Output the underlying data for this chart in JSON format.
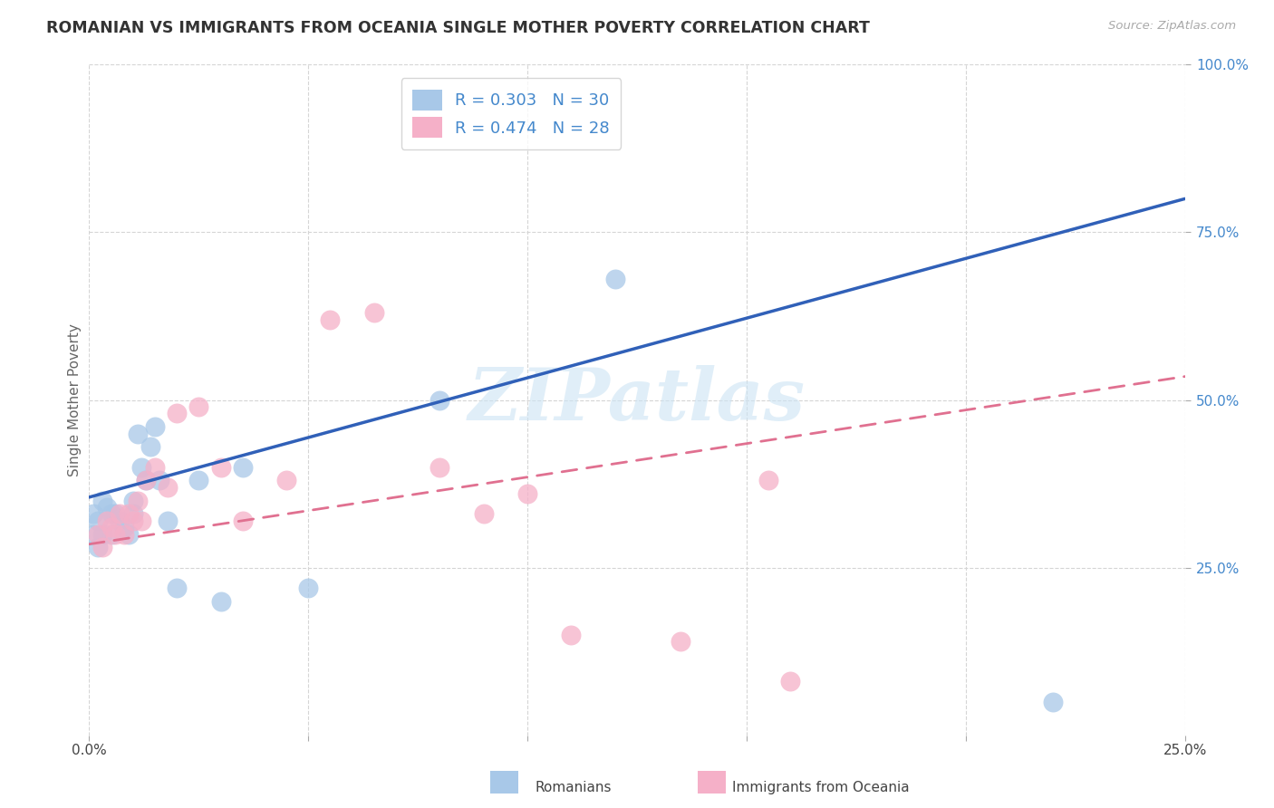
{
  "title": "ROMANIAN VS IMMIGRANTS FROM OCEANIA SINGLE MOTHER POVERTY CORRELATION CHART",
  "source": "Source: ZipAtlas.com",
  "ylabel": "Single Mother Poverty",
  "xlim": [
    0.0,
    0.25
  ],
  "ylim": [
    0.0,
    1.0
  ],
  "x_ticks": [
    0.0,
    0.05,
    0.1,
    0.15,
    0.2,
    0.25
  ],
  "x_tick_labels": [
    "0.0%",
    "",
    "",
    "",
    "",
    "25.0%"
  ],
  "y_ticks": [
    0.25,
    0.5,
    0.75,
    1.0
  ],
  "y_tick_labels": [
    "25.0%",
    "50.0%",
    "75.0%",
    "100.0%"
  ],
  "r_romanian": 0.303,
  "n_romanian": 30,
  "r_oceania": 0.474,
  "n_oceania": 28,
  "color_romanian": "#a8c8e8",
  "color_oceania": "#f5b0c8",
  "line_color_romanian": "#3060b8",
  "line_color_oceania": "#e07090",
  "watermark_text": "ZIPatlas",
  "legend_label_romanian": "Romanians",
  "legend_label_oceania": "Immigrants from Oceania",
  "romanian_x": [
    0.001,
    0.001,
    0.002,
    0.002,
    0.003,
    0.003,
    0.004,
    0.005,
    0.005,
    0.006,
    0.007,
    0.008,
    0.009,
    0.01,
    0.01,
    0.011,
    0.012,
    0.013,
    0.014,
    0.015,
    0.016,
    0.018,
    0.02,
    0.025,
    0.03,
    0.035,
    0.05,
    0.08,
    0.12,
    0.22
  ],
  "romanian_y": [
    0.33,
    0.3,
    0.32,
    0.28,
    0.35,
    0.3,
    0.34,
    0.33,
    0.3,
    0.33,
    0.32,
    0.31,
    0.3,
    0.35,
    0.33,
    0.45,
    0.4,
    0.38,
    0.43,
    0.46,
    0.38,
    0.32,
    0.22,
    0.38,
    0.2,
    0.4,
    0.22,
    0.5,
    0.68,
    0.05
  ],
  "oceania_x": [
    0.002,
    0.003,
    0.004,
    0.005,
    0.006,
    0.007,
    0.008,
    0.009,
    0.01,
    0.011,
    0.012,
    0.013,
    0.015,
    0.018,
    0.02,
    0.025,
    0.03,
    0.035,
    0.045,
    0.055,
    0.065,
    0.08,
    0.09,
    0.1,
    0.11,
    0.135,
    0.155,
    0.16
  ],
  "oceania_y": [
    0.3,
    0.28,
    0.32,
    0.31,
    0.3,
    0.33,
    0.3,
    0.33,
    0.32,
    0.35,
    0.32,
    0.38,
    0.4,
    0.37,
    0.48,
    0.49,
    0.4,
    0.32,
    0.38,
    0.62,
    0.63,
    0.4,
    0.33,
    0.36,
    0.15,
    0.14,
    0.38,
    0.08
  ]
}
